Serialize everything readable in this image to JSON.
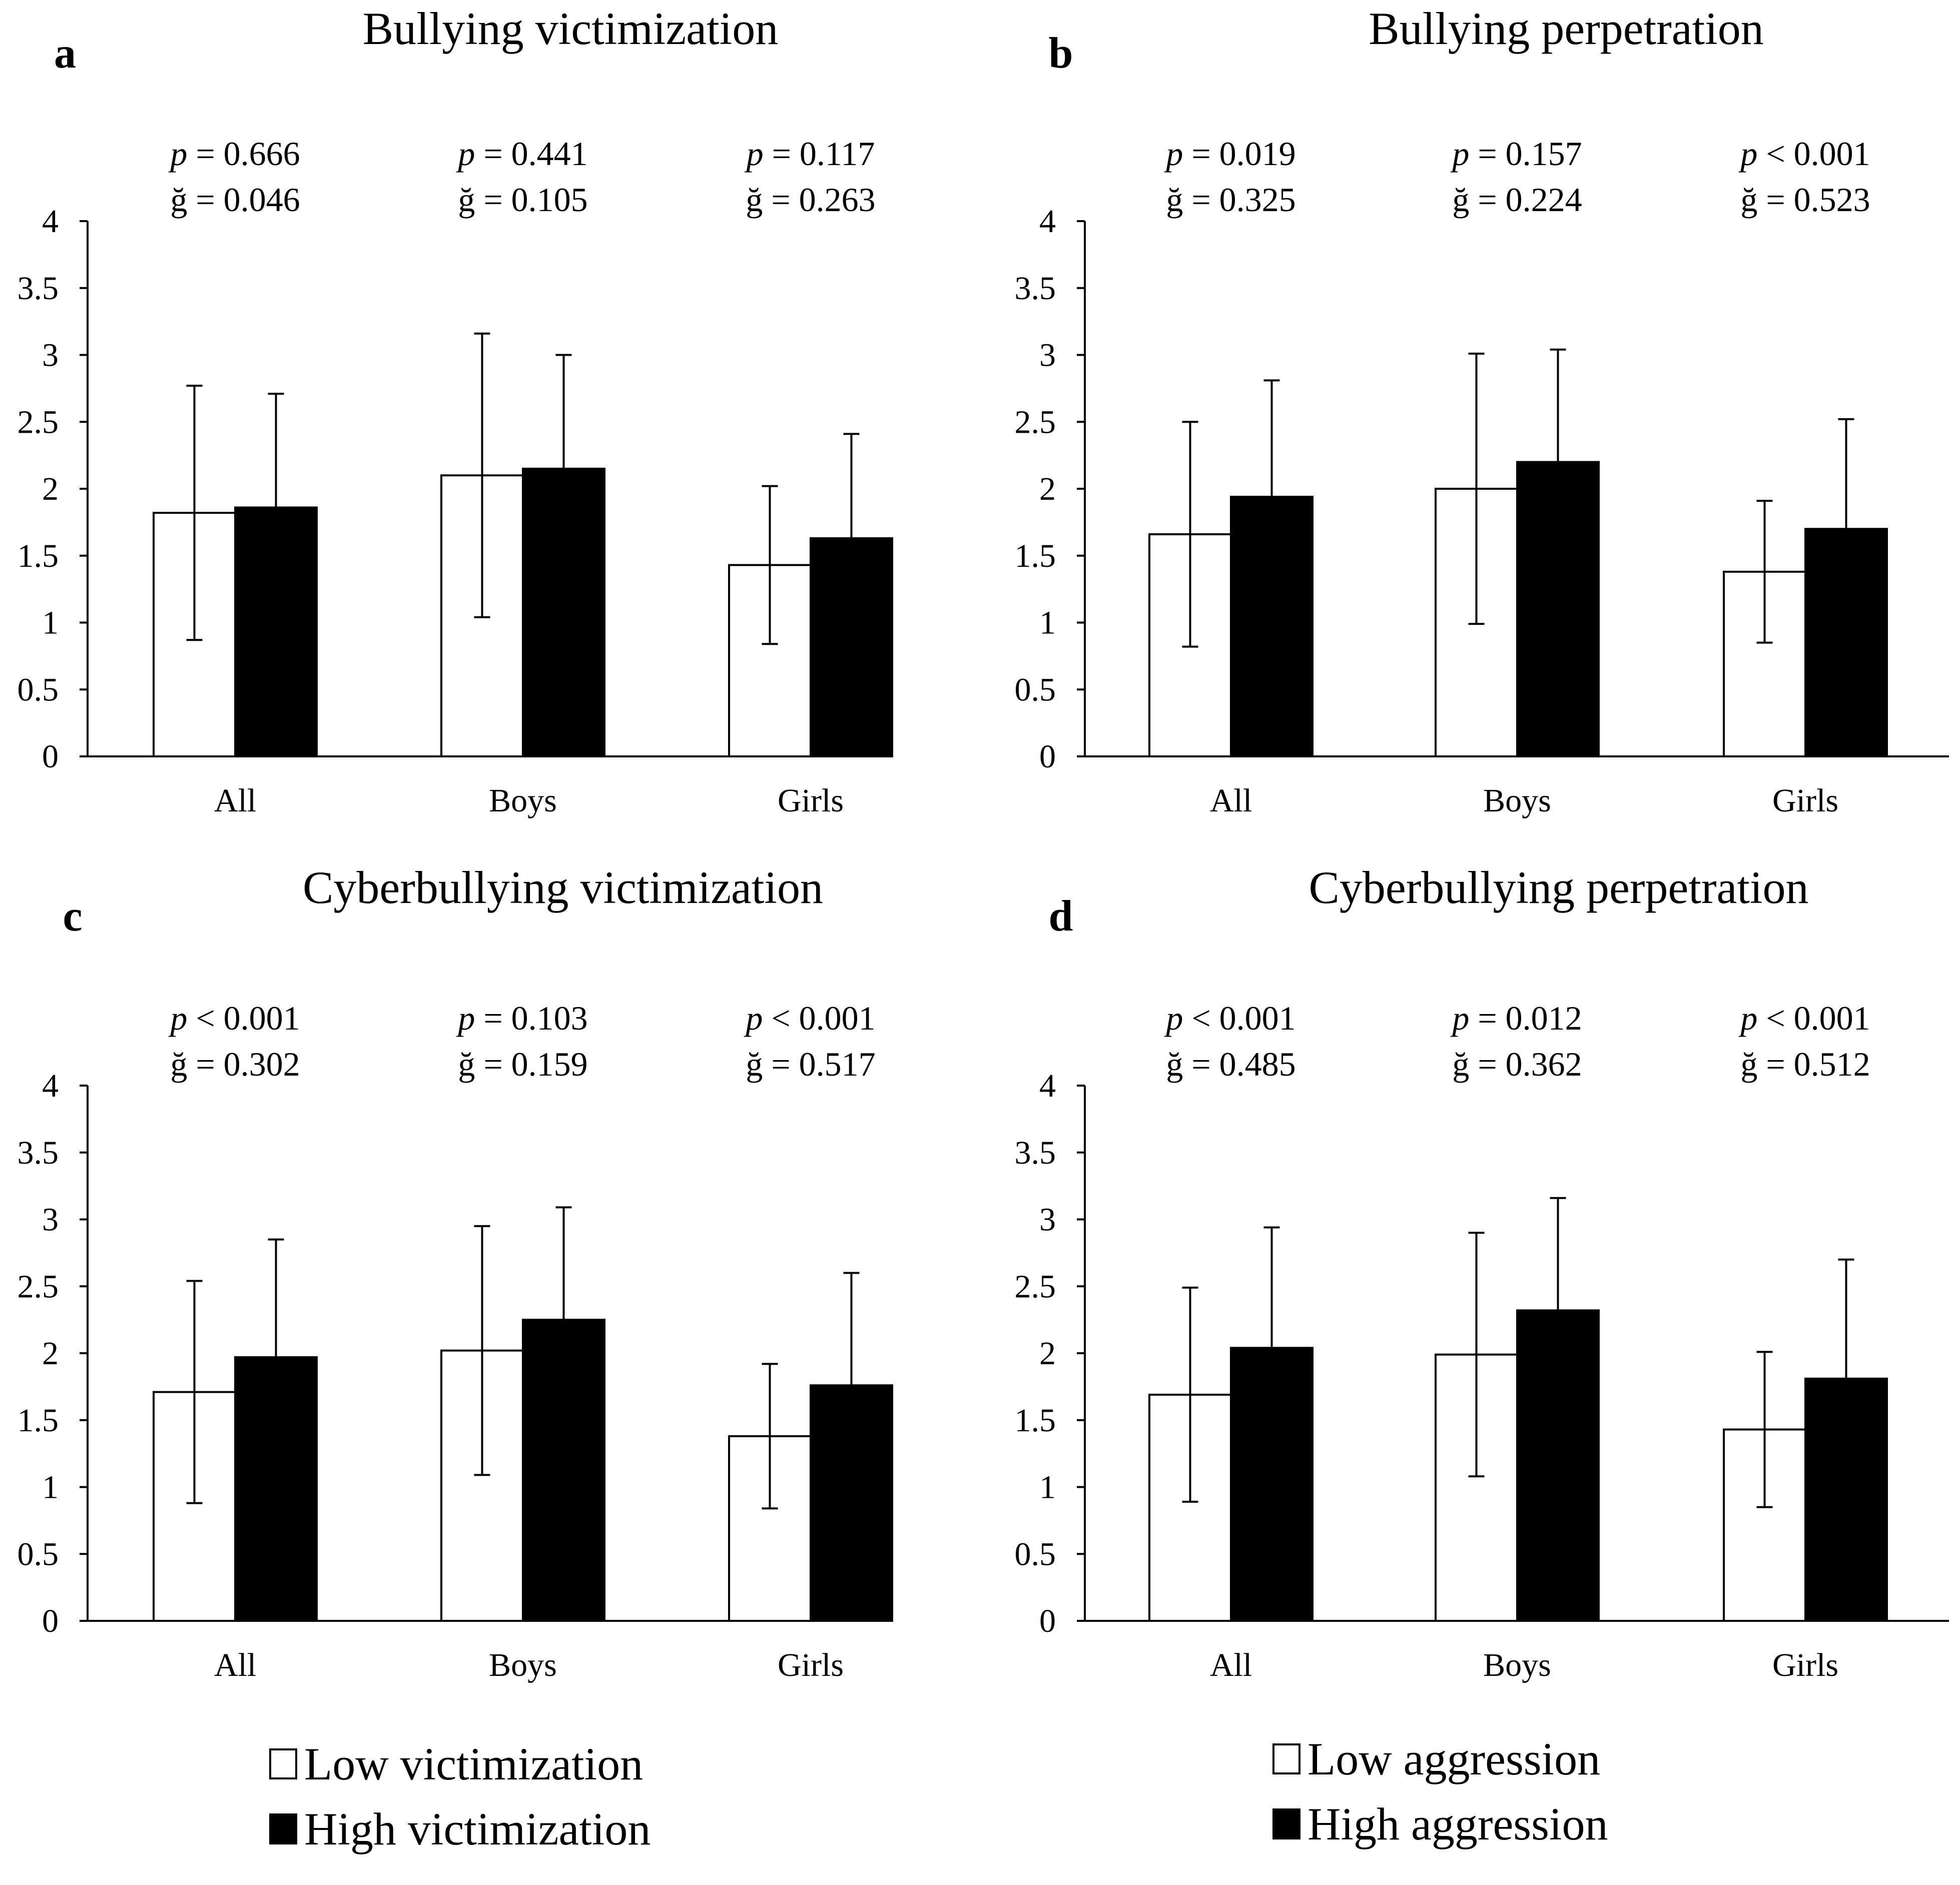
{
  "chart_data": [
    {
      "panel": "a",
      "type": "bar",
      "title": "Bullying victimization",
      "categories": [
        "All",
        "Boys",
        "Girls"
      ],
      "ylim": [
        0,
        4
      ],
      "yticks": [
        "0",
        "0.5",
        "1",
        "1.5",
        "2",
        "2.5",
        "3",
        "3.5",
        "4"
      ],
      "series": [
        {
          "name": "Low victimization",
          "values": [
            1.82,
            2.1,
            1.43
          ],
          "err": [
            0.95,
            1.06,
            0.59
          ]
        },
        {
          "name": "High victimization",
          "values": [
            1.86,
            2.15,
            1.63
          ],
          "err": [
            0.85,
            0.85,
            0.78
          ]
        }
      ],
      "stats": [
        {
          "p_label": "p",
          "p_rest": " = 0.666",
          "g": "ğ = 0.046"
        },
        {
          "p_label": "p",
          "p_rest": " = 0.441",
          "g": "ğ = 0.105"
        },
        {
          "p_label": "p",
          "p_rest": " = 0.117",
          "g": "ğ = 0.263"
        }
      ]
    },
    {
      "panel": "b",
      "type": "bar",
      "title": "Bullying perpetration",
      "categories": [
        "All",
        "Boys",
        "Girls"
      ],
      "ylim": [
        0,
        4
      ],
      "yticks": [
        "0",
        "0.5",
        "1",
        "1.5",
        "2",
        "2.5",
        "3",
        "3.5",
        "4"
      ],
      "series": [
        {
          "name": "Low aggression",
          "values": [
            1.66,
            2.0,
            1.38
          ],
          "err": [
            0.84,
            1.01,
            0.53
          ]
        },
        {
          "name": "High aggression",
          "values": [
            1.94,
            2.2,
            1.7
          ],
          "err": [
            0.87,
            0.84,
            0.82
          ]
        }
      ],
      "stats": [
        {
          "p_label": "p",
          "p_rest": " = 0.019",
          "g": "ğ = 0.325"
        },
        {
          "p_label": "p",
          "p_rest": " = 0.157",
          "g": "ğ = 0.224"
        },
        {
          "p_label": "p",
          "p_rest": " < 0.001",
          "g": "ğ = 0.523"
        }
      ]
    },
    {
      "panel": "c",
      "type": "bar",
      "title": "Cyberbullying victimization",
      "categories": [
        "All",
        "Boys",
        "Girls"
      ],
      "ylim": [
        0,
        4
      ],
      "yticks": [
        "0",
        "0.5",
        "1",
        "1.5",
        "2",
        "2.5",
        "3",
        "3.5",
        "4"
      ],
      "series": [
        {
          "name": "Low victimization",
          "values": [
            1.71,
            2.02,
            1.38
          ],
          "err": [
            0.83,
            0.93,
            0.54
          ]
        },
        {
          "name": "High victimization",
          "values": [
            1.97,
            2.25,
            1.76
          ],
          "err": [
            0.88,
            0.84,
            0.84
          ]
        }
      ],
      "stats": [
        {
          "p_label": "p",
          "p_rest": " < 0.001",
          "g": "ğ = 0.302"
        },
        {
          "p_label": "p",
          "p_rest": " = 0.103",
          "g": "ğ = 0.159"
        },
        {
          "p_label": "p",
          "p_rest": " < 0.001",
          "g": "ğ = 0.517"
        }
      ]
    },
    {
      "panel": "d",
      "type": "bar",
      "title": "Cyberbullying perpetration",
      "categories": [
        "All",
        "Boys",
        "Girls"
      ],
      "ylim": [
        0,
        4
      ],
      "yticks": [
        "0",
        "0.5",
        "1",
        "1.5",
        "2",
        "2.5",
        "3",
        "3.5",
        "4"
      ],
      "series": [
        {
          "name": "Low aggression",
          "values": [
            1.69,
            1.99,
            1.43
          ],
          "err": [
            0.8,
            0.91,
            0.58
          ]
        },
        {
          "name": "High aggression",
          "values": [
            2.04,
            2.32,
            1.81
          ],
          "err": [
            0.9,
            0.84,
            0.89
          ]
        }
      ],
      "stats": [
        {
          "p_label": "p",
          "p_rest": " < 0.001",
          "g": "ğ = 0.485"
        },
        {
          "p_label": "p",
          "p_rest": " = 0.012",
          "g": "ğ = 0.362"
        },
        {
          "p_label": "p",
          "p_rest": " < 0.001",
          "g": "ğ = 0.512"
        }
      ]
    }
  ],
  "legends": [
    {
      "items": [
        {
          "label": "Low victimization",
          "color": "#ffffff"
        },
        {
          "label": "High victimization",
          "color": "#000000"
        }
      ]
    },
    {
      "items": [
        {
          "label": "Low aggression",
          "color": "#ffffff"
        },
        {
          "label": "High aggression",
          "color": "#000000"
        }
      ]
    }
  ],
  "colors": {
    "low": "#ffffff",
    "high": "#000000",
    "axis": "#000000"
  }
}
